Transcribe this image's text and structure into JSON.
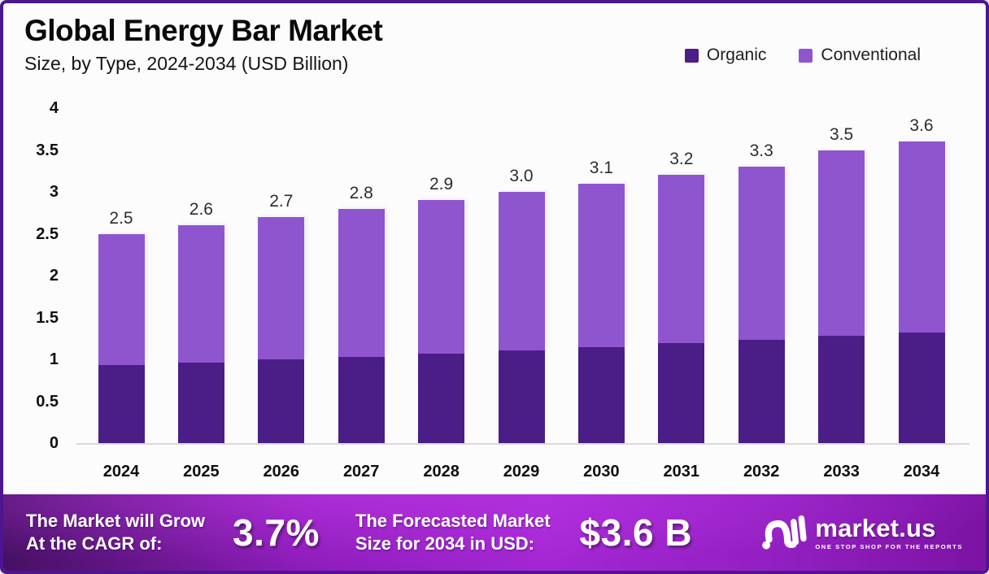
{
  "header": {
    "title": "Global Energy Bar Market",
    "subtitle": "Size, by Type, 2024-2034 (USD Billion)"
  },
  "legend": {
    "items": [
      {
        "label": "Organic",
        "color": "#4A1D87"
      },
      {
        "label": "Conventional",
        "color": "#8F55CE"
      }
    ]
  },
  "chart_data": {
    "type": "bar",
    "stacked": true,
    "title": "Global Energy Bar Market",
    "subtitle": "Size, by Type, 2024-2034 (USD Billion)",
    "categories": [
      "2024",
      "2025",
      "2026",
      "2027",
      "2028",
      "2029",
      "2030",
      "2031",
      "2032",
      "2033",
      "2034"
    ],
    "series": [
      {
        "name": "Organic",
        "color": "#4A1D87",
        "values": [
          0.93,
          0.96,
          1.0,
          1.03,
          1.07,
          1.11,
          1.15,
          1.19,
          1.23,
          1.28,
          1.32
        ]
      },
      {
        "name": "Conventional",
        "color": "#8F55CE",
        "values": [
          1.57,
          1.64,
          1.7,
          1.77,
          1.83,
          1.89,
          1.95,
          2.01,
          2.07,
          2.22,
          2.28
        ]
      }
    ],
    "total_labels": [
      "2.5",
      "2.6",
      "2.7",
      "2.8",
      "2.9",
      "3.0",
      "3.1",
      "3.2",
      "3.3",
      "3.5",
      "3.6"
    ],
    "xlabel": "",
    "ylabel": "",
    "ylim": [
      0,
      4
    ],
    "yticks": [
      "0",
      "0.5",
      "1",
      "1.5",
      "2",
      "2.5",
      "3",
      "3.5",
      "4"
    ],
    "grid": false,
    "legend_position": "top-right"
  },
  "banner": {
    "cagr_line1": "The Market will Grow",
    "cagr_line2": "At the CAGR of:",
    "cagr_value": "3.7%",
    "forecast_line1": "The Forecasted Market",
    "forecast_line2": "Size for 2034 in USD:",
    "forecast_value": "$3.6 B",
    "logo_text": "market.us",
    "logo_tagline": "ONE STOP SHOP FOR THE REPORTS"
  },
  "colors": {
    "organic": "#4A1D87",
    "conventional": "#8F55CE",
    "frame_border": "#4B1690",
    "banner_bright": "#A327D3",
    "banner_dark": "#451063",
    "background": "#FDFCFD"
  }
}
